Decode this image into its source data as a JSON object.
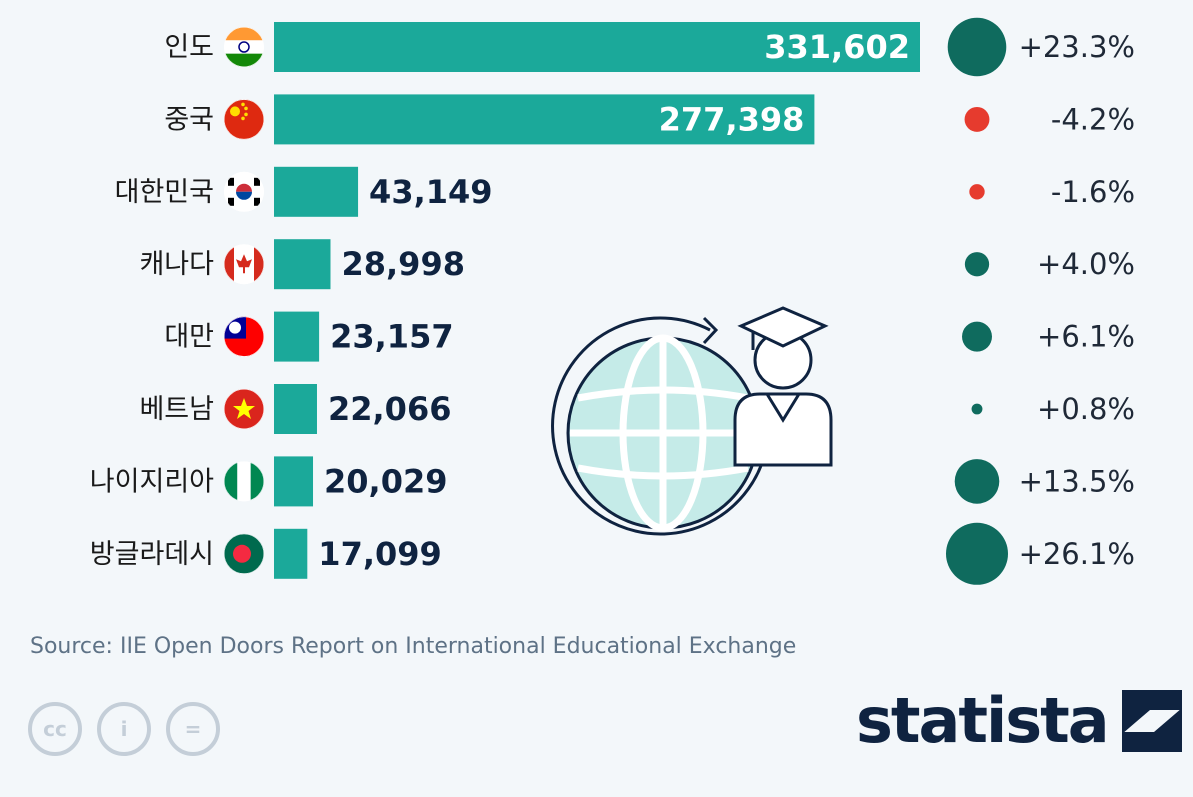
{
  "chart_data": {
    "type": "bar",
    "categories": [
      "인도",
      "중국",
      "대한민국",
      "캐나다",
      "대만",
      "베트남",
      "나이지리아",
      "방글라데시"
    ],
    "flags": [
      "india",
      "china",
      "south-korea",
      "canada",
      "taiwan",
      "vietnam",
      "nigeria",
      "bangladesh"
    ],
    "values": [
      331602,
      277398,
      43149,
      28998,
      23157,
      22066,
      20029,
      17099
    ],
    "value_labels": [
      "331,602",
      "277,398",
      "43,149",
      "28,998",
      "23,157",
      "22,066",
      "20,029",
      "17,099"
    ],
    "changes": [
      23.3,
      -4.2,
      -1.6,
      4.0,
      6.1,
      0.8,
      13.5,
      26.1
    ],
    "change_labels": [
      "+23.3%",
      "-4.2%",
      "-1.6%",
      "+4.0%",
      "+6.1%",
      "+0.8%",
      "+13.5%",
      "+26.1%"
    ],
    "orientation": "horizontal",
    "grid": false,
    "legend": "none",
    "colors": {
      "bar": "#1ba99a",
      "value_outside": "#0f2340",
      "value_inside": "#ffffff",
      "positive": "#0f6b5e",
      "negative": "#e63b2e"
    }
  },
  "center_icon": "globe-graduate-icon",
  "source": "Source: IIE Open Doors Report on International Educational Exchange",
  "license_icons": [
    "cc-icon",
    "attribution-icon",
    "no-derivatives-icon"
  ],
  "license_glyphs": [
    "cc",
    "i",
    "="
  ],
  "brand": "statista"
}
